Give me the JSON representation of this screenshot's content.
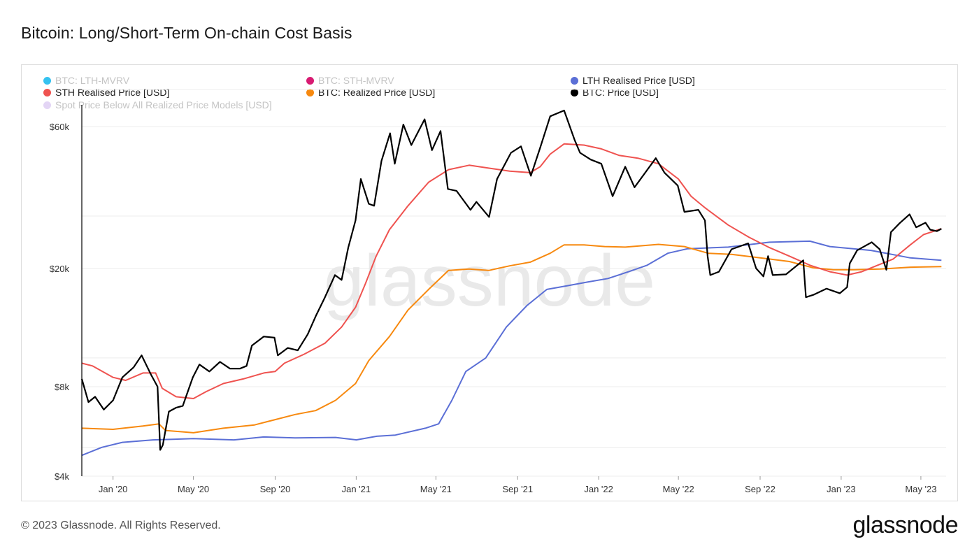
{
  "header": {
    "title": "Bitcoin: Long/Short-Term On-chain Cost Basis"
  },
  "footer": {
    "copyright": "© 2023 Glassnode. All Rights Reserved.",
    "brand": "glassnode"
  },
  "watermark": "glassnode",
  "legend": [
    {
      "label": "BTC: LTH-MVRV",
      "color": "#35c2f0",
      "active": false
    },
    {
      "label": "BTC: STH-MVRV",
      "color": "#d81b72",
      "active": false
    },
    {
      "label": "LTH Realised Price [USD]",
      "color": "#5b6fd6",
      "active": true
    },
    {
      "label": "STH Realised Price [USD]",
      "color": "#ef5350",
      "active": true
    },
    {
      "label": "BTC: Realized Price [USD]",
      "color": "#f7890f",
      "active": true
    },
    {
      "label": "BTC: Price [USD]",
      "color": "#000000",
      "active": true
    },
    {
      "label": "Spot Price Below All Realized Price Models [USD]",
      "color": "#e3d5f5",
      "active": false
    }
  ],
  "chart_data": {
    "type": "line",
    "title": "Bitcoin: Long/Short-Term On-chain Cost Basis",
    "xlabel": "",
    "ylabel": "",
    "y_scale": "log",
    "ylim": [
      4000,
      80000
    ],
    "xlim": [
      "2019-11-15",
      "2023-06-08"
    ],
    "x_ticks": [
      {
        "date": "2020-01-01",
        "label": "Jan '20"
      },
      {
        "date": "2020-05-01",
        "label": "May '20"
      },
      {
        "date": "2020-09-01",
        "label": "Sep '20"
      },
      {
        "date": "2021-01-01",
        "label": "Jan '21"
      },
      {
        "date": "2021-05-01",
        "label": "May '21"
      },
      {
        "date": "2021-09-01",
        "label": "Sep '21"
      },
      {
        "date": "2022-01-01",
        "label": "Jan '22"
      },
      {
        "date": "2022-05-01",
        "label": "May '22"
      },
      {
        "date": "2022-09-01",
        "label": "Sep '22"
      },
      {
        "date": "2023-01-01",
        "label": "Jan '23"
      },
      {
        "date": "2023-05-01",
        "label": "May '23"
      }
    ],
    "y_ticks": [
      {
        "value": 4000,
        "label": "$4k"
      },
      {
        "value": 8000,
        "label": "$8k"
      },
      {
        "value": 20000,
        "label": "$20k"
      },
      {
        "value": 60000,
        "label": "$60k"
      }
    ],
    "grid_values": [
      4000,
      5000,
      8000,
      10000,
      20000,
      30000,
      60000,
      80000
    ],
    "series": [
      {
        "name": "BTC: Price [USD]",
        "color": "#000000",
        "points": [
          [
            "2019-11-15",
            8500
          ],
          [
            "2019-11-25",
            7100
          ],
          [
            "2019-12-05",
            7400
          ],
          [
            "2019-12-18",
            6700
          ],
          [
            "2020-01-01",
            7200
          ],
          [
            "2020-01-15",
            8600
          ],
          [
            "2020-02-01",
            9300
          ],
          [
            "2020-02-13",
            10200
          ],
          [
            "2020-02-27",
            8800
          ],
          [
            "2020-03-08",
            8000
          ],
          [
            "2020-03-12",
            4900
          ],
          [
            "2020-03-16",
            5100
          ],
          [
            "2020-03-25",
            6600
          ],
          [
            "2020-04-05",
            6800
          ],
          [
            "2020-04-15",
            6900
          ],
          [
            "2020-04-30",
            8600
          ],
          [
            "2020-05-10",
            9500
          ],
          [
            "2020-05-25",
            9000
          ],
          [
            "2020-06-10",
            9700
          ],
          [
            "2020-06-25",
            9200
          ],
          [
            "2020-07-10",
            9200
          ],
          [
            "2020-07-20",
            9400
          ],
          [
            "2020-07-28",
            11000
          ],
          [
            "2020-08-15",
            11800
          ],
          [
            "2020-08-31",
            11700
          ],
          [
            "2020-09-05",
            10200
          ],
          [
            "2020-09-20",
            10800
          ],
          [
            "2020-10-05",
            10600
          ],
          [
            "2020-10-20",
            12000
          ],
          [
            "2020-11-01",
            13800
          ],
          [
            "2020-11-15",
            16000
          ],
          [
            "2020-11-30",
            19000
          ],
          [
            "2020-12-10",
            18300
          ],
          [
            "2020-12-20",
            23500
          ],
          [
            "2020-12-31",
            29000
          ],
          [
            "2021-01-08",
            40000
          ],
          [
            "2021-01-20",
            33000
          ],
          [
            "2021-01-28",
            32500
          ],
          [
            "2021-02-08",
            46000
          ],
          [
            "2021-02-21",
            57000
          ],
          [
            "2021-02-28",
            45000
          ],
          [
            "2021-03-13",
            61000
          ],
          [
            "2021-03-25",
            52000
          ],
          [
            "2021-04-14",
            63500
          ],
          [
            "2021-04-25",
            50000
          ],
          [
            "2021-05-08",
            58000
          ],
          [
            "2021-05-19",
            37000
          ],
          [
            "2021-06-01",
            36500
          ],
          [
            "2021-06-22",
            31500
          ],
          [
            "2021-07-01",
            33500
          ],
          [
            "2021-07-20",
            29800
          ],
          [
            "2021-08-01",
            40000
          ],
          [
            "2021-08-22",
            49000
          ],
          [
            "2021-09-06",
            51500
          ],
          [
            "2021-09-21",
            41000
          ],
          [
            "2021-10-05",
            51000
          ],
          [
            "2021-10-20",
            65000
          ],
          [
            "2021-11-10",
            68000
          ],
          [
            "2021-11-26",
            54000
          ],
          [
            "2021-12-04",
            49000
          ],
          [
            "2021-12-20",
            46500
          ],
          [
            "2022-01-05",
            45000
          ],
          [
            "2022-01-22",
            35000
          ],
          [
            "2022-02-10",
            44000
          ],
          [
            "2022-02-24",
            37500
          ],
          [
            "2022-03-28",
            47000
          ],
          [
            "2022-04-10",
            42000
          ],
          [
            "2022-04-30",
            38000
          ],
          [
            "2022-05-10",
            31000
          ],
          [
            "2022-05-31",
            31500
          ],
          [
            "2022-06-10",
            29000
          ],
          [
            "2022-06-14",
            22000
          ],
          [
            "2022-06-18",
            19000
          ],
          [
            "2022-07-01",
            19500
          ],
          [
            "2022-07-20",
            23200
          ],
          [
            "2022-08-14",
            24300
          ],
          [
            "2022-08-26",
            20000
          ],
          [
            "2022-09-06",
            18800
          ],
          [
            "2022-09-13",
            22000
          ],
          [
            "2022-09-20",
            19000
          ],
          [
            "2022-10-10",
            19100
          ],
          [
            "2022-11-05",
            21300
          ],
          [
            "2022-11-09",
            16000
          ],
          [
            "2022-11-20",
            16300
          ],
          [
            "2022-12-10",
            17100
          ],
          [
            "2022-12-30",
            16500
          ],
          [
            "2023-01-10",
            17300
          ],
          [
            "2023-01-14",
            20800
          ],
          [
            "2023-01-25",
            23000
          ],
          [
            "2023-02-16",
            24500
          ],
          [
            "2023-02-28",
            23200
          ],
          [
            "2023-03-10",
            19800
          ],
          [
            "2023-03-17",
            26500
          ],
          [
            "2023-03-30",
            28400
          ],
          [
            "2023-04-14",
            30400
          ],
          [
            "2023-04-24",
            27500
          ],
          [
            "2023-05-08",
            28500
          ],
          [
            "2023-05-15",
            27000
          ],
          [
            "2023-05-25",
            26700
          ],
          [
            "2023-06-01",
            27200
          ]
        ]
      },
      {
        "name": "STH Realised Price [USD]",
        "color": "#ef5350",
        "points": [
          [
            "2019-11-15",
            9600
          ],
          [
            "2019-12-01",
            9400
          ],
          [
            "2020-01-01",
            8600
          ],
          [
            "2020-01-20",
            8400
          ],
          [
            "2020-02-15",
            8900
          ],
          [
            "2020-03-05",
            8900
          ],
          [
            "2020-03-15",
            7900
          ],
          [
            "2020-04-05",
            7400
          ],
          [
            "2020-05-01",
            7300
          ],
          [
            "2020-05-20",
            7700
          ],
          [
            "2020-06-15",
            8200
          ],
          [
            "2020-07-15",
            8500
          ],
          [
            "2020-08-15",
            8900
          ],
          [
            "2020-09-01",
            9000
          ],
          [
            "2020-09-15",
            9600
          ],
          [
            "2020-10-15",
            10300
          ],
          [
            "2020-11-15",
            11200
          ],
          [
            "2020-12-10",
            12700
          ],
          [
            "2020-12-31",
            14800
          ],
          [
            "2021-01-15",
            17800
          ],
          [
            "2021-01-31",
            22000
          ],
          [
            "2021-02-20",
            27000
          ],
          [
            "2021-03-20",
            32500
          ],
          [
            "2021-04-20",
            39000
          ],
          [
            "2021-05-20",
            43000
          ],
          [
            "2021-06-20",
            44500
          ],
          [
            "2021-07-20",
            43500
          ],
          [
            "2021-08-20",
            42500
          ],
          [
            "2021-09-20",
            42000
          ],
          [
            "2021-10-05",
            44000
          ],
          [
            "2021-10-20",
            48500
          ],
          [
            "2021-11-10",
            52500
          ],
          [
            "2021-12-10",
            52000
          ],
          [
            "2022-01-05",
            50500
          ],
          [
            "2022-02-01",
            48000
          ],
          [
            "2022-03-01",
            47000
          ],
          [
            "2022-04-01",
            45000
          ],
          [
            "2022-05-01",
            40000
          ],
          [
            "2022-05-20",
            35000
          ],
          [
            "2022-06-10",
            32000
          ],
          [
            "2022-07-15",
            28000
          ],
          [
            "2022-08-15",
            25500
          ],
          [
            "2022-09-15",
            23500
          ],
          [
            "2022-10-15",
            22000
          ],
          [
            "2022-11-15",
            20500
          ],
          [
            "2022-12-15",
            19500
          ],
          [
            "2023-01-10",
            19000
          ],
          [
            "2023-02-01",
            19500
          ],
          [
            "2023-02-25",
            20500
          ],
          [
            "2023-03-20",
            21500
          ],
          [
            "2023-04-15",
            24000
          ],
          [
            "2023-05-05",
            26000
          ],
          [
            "2023-06-01",
            27200
          ]
        ]
      },
      {
        "name": "BTC: Realized Price [USD]",
        "color": "#f7890f",
        "points": [
          [
            "2019-11-15",
            5800
          ],
          [
            "2020-01-01",
            5750
          ],
          [
            "2020-02-15",
            5900
          ],
          [
            "2020-03-10",
            6000
          ],
          [
            "2020-03-20",
            5700
          ],
          [
            "2020-05-01",
            5600
          ],
          [
            "2020-06-15",
            5800
          ],
          [
            "2020-08-01",
            5950
          ],
          [
            "2020-09-01",
            6200
          ],
          [
            "2020-10-01",
            6450
          ],
          [
            "2020-11-01",
            6650
          ],
          [
            "2020-12-01",
            7200
          ],
          [
            "2020-12-31",
            8200
          ],
          [
            "2021-01-20",
            9800
          ],
          [
            "2021-02-20",
            11800
          ],
          [
            "2021-03-20",
            14500
          ],
          [
            "2021-04-20",
            17000
          ],
          [
            "2021-05-20",
            19700
          ],
          [
            "2021-06-20",
            19900
          ],
          [
            "2021-07-20",
            19700
          ],
          [
            "2021-08-20",
            20400
          ],
          [
            "2021-09-20",
            21000
          ],
          [
            "2021-10-20",
            22500
          ],
          [
            "2021-11-10",
            24000
          ],
          [
            "2021-12-10",
            24000
          ],
          [
            "2022-01-10",
            23700
          ],
          [
            "2022-02-10",
            23600
          ],
          [
            "2022-04-01",
            24100
          ],
          [
            "2022-05-10",
            23700
          ],
          [
            "2022-06-15",
            22500
          ],
          [
            "2022-07-20",
            22300
          ],
          [
            "2022-09-01",
            21700
          ],
          [
            "2022-10-15",
            21100
          ],
          [
            "2022-11-20",
            20100
          ],
          [
            "2022-12-20",
            19800
          ],
          [
            "2023-01-20",
            19800
          ],
          [
            "2023-03-01",
            19900
          ],
          [
            "2023-04-15",
            20200
          ],
          [
            "2023-06-01",
            20300
          ]
        ]
      },
      {
        "name": "LTH Realised Price [USD]",
        "color": "#5b6fd6",
        "points": [
          [
            "2019-11-15",
            4700
          ],
          [
            "2019-12-15",
            5000
          ],
          [
            "2020-01-15",
            5200
          ],
          [
            "2020-03-01",
            5300
          ],
          [
            "2020-05-01",
            5350
          ],
          [
            "2020-07-01",
            5300
          ],
          [
            "2020-08-15",
            5420
          ],
          [
            "2020-10-01",
            5380
          ],
          [
            "2020-12-01",
            5400
          ],
          [
            "2021-01-01",
            5300
          ],
          [
            "2021-02-01",
            5450
          ],
          [
            "2021-03-01",
            5500
          ],
          [
            "2021-04-15",
            5800
          ],
          [
            "2021-05-05",
            6000
          ],
          [
            "2021-05-25",
            7200
          ],
          [
            "2021-06-15",
            9000
          ],
          [
            "2021-07-15",
            10000
          ],
          [
            "2021-08-15",
            12700
          ],
          [
            "2021-09-15",
            15000
          ],
          [
            "2021-10-15",
            17000
          ],
          [
            "2021-11-15",
            17500
          ],
          [
            "2021-12-15",
            18000
          ],
          [
            "2022-01-15",
            18500
          ],
          [
            "2022-02-15",
            19500
          ],
          [
            "2022-03-15",
            20500
          ],
          [
            "2022-04-15",
            22500
          ],
          [
            "2022-05-15",
            23300
          ],
          [
            "2022-07-15",
            23600
          ],
          [
            "2022-09-15",
            24500
          ],
          [
            "2022-11-15",
            24700
          ],
          [
            "2022-12-15",
            23700
          ],
          [
            "2023-02-15",
            23000
          ],
          [
            "2023-04-15",
            21700
          ],
          [
            "2023-06-01",
            21300
          ]
        ]
      }
    ],
    "grid": true,
    "legend_position": "top-left"
  }
}
